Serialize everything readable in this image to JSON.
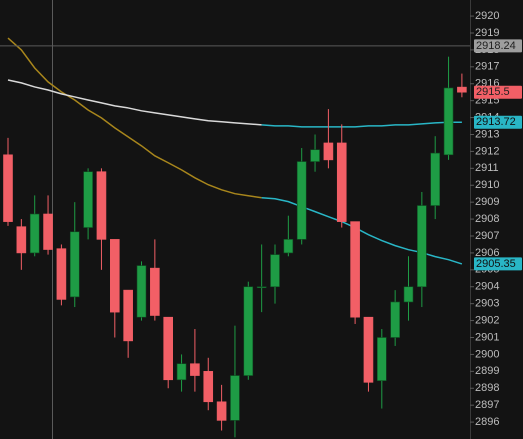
{
  "chart_data": {
    "type": "candlestick",
    "ylim": [
      2895.0,
      2920.95
    ],
    "yticks": [
      2896,
      2897,
      2898,
      2899,
      2900,
      2901,
      2902,
      2903,
      2904,
      2905,
      2906,
      2907,
      2908,
      2909,
      2910,
      2911,
      2912,
      2913,
      2914,
      2915,
      2916,
      2917,
      2918,
      2919,
      2920
    ],
    "up_color": "#1e9c45",
    "down_color": "#f25f66",
    "open": [
      2911.8,
      2907.55,
      2906.0,
      2908.3,
      2906.25,
      2903.4,
      2907.5,
      2910.8,
      2906.8,
      2903.8,
      2902.2,
      2905.1,
      2902.2,
      2898.5,
      2899.45,
      2899.0,
      2897.2,
      2896.1,
      2898.75,
      2904.0,
      2904.0,
      2906.0,
      2906.8,
      2911.4,
      2912.5,
      2912.5,
      2907.85,
      2902.2,
      2898.45,
      2901.0,
      2903.1,
      2904.0,
      2908.8,
      2911.8,
      2915.8
    ],
    "high": [
      2912.8,
      2908.0,
      2909.4,
      2909.4,
      2906.5,
      2909.0,
      2911.0,
      2911.0,
      2906.8,
      2903.8,
      2905.5,
      2906.8,
      2902.2,
      2900.0,
      2901.5,
      2899.8,
      2898.2,
      2901.7,
      2904.3,
      2906.5,
      2906.5,
      2908.2,
      2912.2,
      2913.0,
      2914.5,
      2913.6,
      2907.85,
      2902.2,
      2901.5,
      2903.8,
      2905.8,
      2909.6,
      2912.9,
      2917.6,
      2916.6
    ],
    "low": [
      2907.6,
      2905.0,
      2905.8,
      2905.9,
      2902.9,
      2902.8,
      2906.8,
      2905.0,
      2901.0,
      2899.8,
      2902.0,
      2902.0,
      2898.0,
      2897.8,
      2897.8,
      2896.7,
      2895.5,
      2895.1,
      2898.5,
      2902.5,
      2903.0,
      2905.8,
      2906.5,
      2910.8,
      2911.0,
      2907.5,
      2901.8,
      2897.8,
      2896.8,
      2900.5,
      2902.0,
      2902.8,
      2908.0,
      2911.5,
      2915.2
    ],
    "close": [
      2907.85,
      2906.0,
      2908.3,
      2906.2,
      2903.25,
      2907.25,
      2910.8,
      2906.8,
      2902.5,
      2900.8,
      2905.25,
      2902.3,
      2898.5,
      2899.45,
      2898.75,
      2897.2,
      2896.1,
      2898.75,
      2904.0,
      2904.0,
      2905.9,
      2906.8,
      2911.4,
      2912.1,
      2911.5,
      2907.85,
      2902.2,
      2898.35,
      2901.0,
      2903.1,
      2904.0,
      2908.8,
      2911.9,
      2915.75,
      2915.5
    ],
    "lines": [
      {
        "color": "#a8861c",
        "recent_color": "#29b6c6",
        "values": [
          2918.7,
          2918.0,
          2916.93,
          2916.11,
          2915.52,
          2915.04,
          2914.45,
          2913.98,
          2913.39,
          2912.86,
          2912.33,
          2911.74,
          2911.33,
          2910.91,
          2910.44,
          2910.03,
          2909.73,
          2909.5,
          2909.38,
          2909.26,
          2909.2,
          2909.03,
          2908.73,
          2908.44,
          2908.14,
          2907.85,
          2907.49,
          2907.08,
          2906.73,
          2906.43,
          2906.19,
          2906.02,
          2905.78,
          2905.6,
          2905.35
        ]
      },
      {
        "color": "#d9d9d9",
        "recent_color": "#29b6c6",
        "values": [
          2916.22,
          2916.05,
          2915.81,
          2915.63,
          2915.4,
          2915.22,
          2915.04,
          2914.87,
          2914.69,
          2914.57,
          2914.4,
          2914.28,
          2914.16,
          2914.04,
          2913.92,
          2913.81,
          2913.75,
          2913.69,
          2913.63,
          2913.57,
          2913.51,
          2913.51,
          2913.45,
          2913.45,
          2913.45,
          2913.45,
          2913.45,
          2913.51,
          2913.51,
          2913.57,
          2913.57,
          2913.63,
          2913.69,
          2913.72,
          2913.72
        ]
      }
    ],
    "recent_from": 20,
    "crosshair_y": 2918.24
  }
}
